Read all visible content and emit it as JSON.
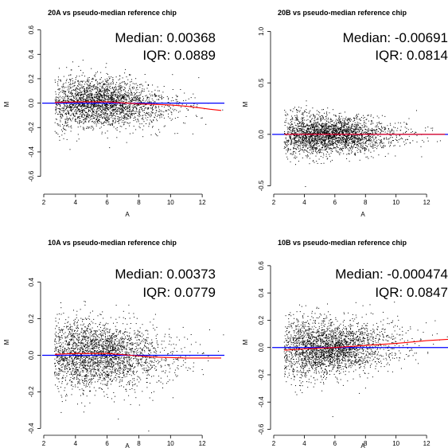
{
  "chart_data": [
    {
      "type": "scatter",
      "title": "20A vs pseudo-median reference chip",
      "xlabel": "A",
      "ylabel": "M",
      "xlim": [
        2,
        13.4
      ],
      "ylim": [
        -0.72,
        0.63
      ],
      "xticks": [
        2,
        4,
        6,
        8,
        10,
        12
      ],
      "yticks": [
        -0.6,
        -0.4,
        -0.2,
        0.0,
        0.2,
        0.4,
        0.6
      ],
      "ytick_labels": [
        "-0.6",
        "-0.4",
        "-0.2",
        "0.0",
        "0.2",
        "0.4",
        "0.6"
      ],
      "annotations": {
        "median": "Median: 0.00368",
        "iqr": "IQR: 0.0889"
      },
      "reference_line": {
        "y": 0.0,
        "color": "#0000ff"
      },
      "loess_line": {
        "color": "#ff0000",
        "x": [
          2.7,
          4,
          6,
          8,
          10,
          11,
          12.5,
          13.2
        ],
        "y": [
          0.005,
          0.01,
          0.01,
          -0.005,
          -0.015,
          -0.025,
          -0.05,
          -0.06
        ]
      },
      "points": {
        "n": 2600,
        "x_peak": 5.2,
        "spread": 0.095,
        "spread_slope": 0.008,
        "color": "#000000"
      }
    },
    {
      "type": "scatter",
      "title": "20B vs pseudo-median reference chip",
      "xlabel": "A",
      "ylabel": "M",
      "xlim": [
        2,
        13.4
      ],
      "ylim": [
        -0.55,
        1.05
      ],
      "xticks": [
        2,
        4,
        6,
        8,
        10,
        12
      ],
      "yticks": [
        -0.5,
        0.0,
        0.5,
        1.0
      ],
      "ytick_labels": [
        "-0.5",
        "0.0",
        "0.5",
        "1.0"
      ],
      "annotations": {
        "median": "Median: -0.00691",
        "iqr": "IQR: 0.0814"
      },
      "reference_line": {
        "y": 0.0,
        "color": "#0000ff"
      },
      "loess_line": {
        "color": "#ff0000",
        "x": [
          2.7,
          4,
          6,
          8,
          10,
          12,
          13.2
        ],
        "y": [
          0.0,
          0.0,
          0.0,
          0.0,
          0.0,
          0.0,
          0.0
        ]
      },
      "points": {
        "n": 2600,
        "x_peak": 5.0,
        "spread": 0.085,
        "spread_slope": 0.01,
        "color": "#000000"
      }
    },
    {
      "type": "scatter",
      "title": "10A vs pseudo-median reference chip",
      "xlabel": "A",
      "ylabel": "M",
      "xlim": [
        2,
        13.4
      ],
      "ylim": [
        -0.42,
        0.52
      ],
      "xticks": [
        2,
        4,
        6,
        8,
        10,
        12
      ],
      "yticks": [
        -0.4,
        -0.2,
        0.0,
        0.2,
        0.4
      ],
      "ytick_labels": [
        "-0.4",
        "-0.2",
        "0.0",
        "0.2",
        "0.4"
      ],
      "annotations": {
        "median": "Median: 0.00373",
        "iqr": "IQR: 0.0779"
      },
      "reference_line": {
        "y": 0.0,
        "color": "#0000ff"
      },
      "loess_line": {
        "color": "#ff0000",
        "x": [
          2.7,
          4,
          6,
          7.5,
          9,
          11,
          13.2
        ],
        "y": [
          0.005,
          0.01,
          0.01,
          0.0,
          -0.01,
          -0.015,
          -0.015
        ]
      },
      "points": {
        "n": 2600,
        "x_peak": 5.0,
        "spread": 0.085,
        "spread_slope": 0.006,
        "color": "#000000"
      }
    },
    {
      "type": "scatter",
      "title": "10B vs pseudo-median reference chip",
      "xlabel": "A",
      "ylabel": "M",
      "xlim": [
        2,
        13.4
      ],
      "ylim": [
        -0.62,
        0.64
      ],
      "xticks": [
        2,
        4,
        6,
        8,
        10,
        12
      ],
      "yticks": [
        -0.6,
        -0.4,
        -0.2,
        0.0,
        0.2,
        0.4,
        0.6
      ],
      "ytick_labels": [
        "-0.6",
        "-0.4",
        "-0.2",
        "0.0",
        "0.2",
        "0.4",
        "0.6"
      ],
      "annotations": {
        "median": "Median: -0.000474",
        "iqr": "IQR: 0.0847"
      },
      "reference_line": {
        "y": 0.0,
        "color": "#0000ff"
      },
      "loess_line": {
        "color": "#ff0000",
        "x": [
          2.7,
          4,
          6,
          8,
          10,
          12,
          13.4
        ],
        "y": [
          -0.02,
          -0.01,
          0.0,
          0.015,
          0.03,
          0.05,
          0.06
        ]
      },
      "points": {
        "n": 2600,
        "x_peak": 5.0,
        "spread": 0.095,
        "spread_slope": 0.008,
        "color": "#000000"
      }
    }
  ]
}
